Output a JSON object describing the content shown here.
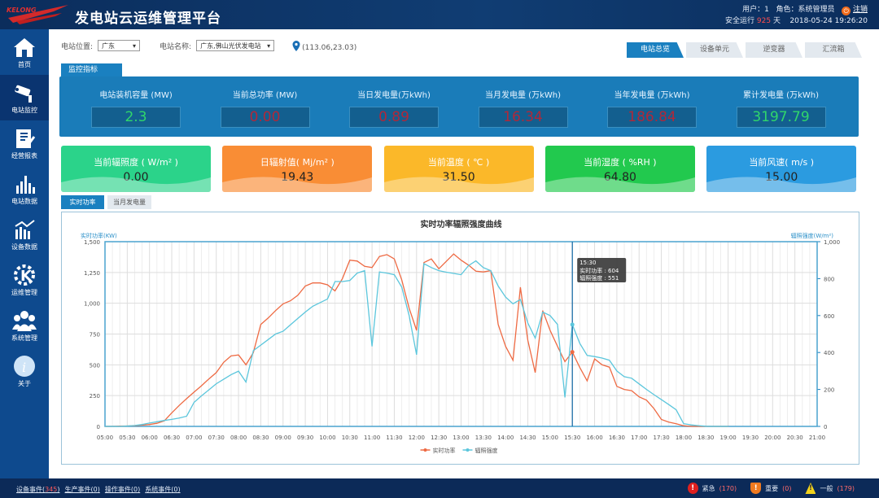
{
  "header": {
    "title": "发电站云运维管理平台",
    "logo_text": "KELONG",
    "user_label": "用户：",
    "user": "1",
    "role_label": "角色：",
    "role": "系统管理员",
    "logout": "注销",
    "safe_run_prefix": "安全运行",
    "safe_run_days": "925",
    "safe_run_suffix": "天",
    "datetime": "2018-05-24 19:26:20"
  },
  "sidebar": {
    "items": [
      {
        "label": "首页",
        "icon": "home-icon"
      },
      {
        "label": "电站监控",
        "icon": "camera-icon",
        "active": true
      },
      {
        "label": "经营报表",
        "icon": "report-icon"
      },
      {
        "label": "电站数据",
        "icon": "bar-chart-icon"
      },
      {
        "label": "设备数据",
        "icon": "trend-chart-icon"
      },
      {
        "label": "运维管理",
        "icon": "gear-k-icon"
      },
      {
        "label": "系统管理",
        "icon": "users-icon"
      },
      {
        "label": "关于",
        "icon": "info-icon"
      }
    ]
  },
  "filters": {
    "location_label": "电站位置:",
    "location": "广东",
    "station_label": "电站名称:",
    "station": "广东,佛山光伏发电站",
    "coords": "(113.06,23.03)"
  },
  "tabs": [
    "电站总览",
    "设备单元",
    "逆变器",
    "汇流箱"
  ],
  "monitor": {
    "tab": "监控指标",
    "metrics": [
      {
        "label": "电站装机容量 (MW)",
        "value": "2.3"
      },
      {
        "label": "当前总功率 (MW)",
        "value": "0.00"
      },
      {
        "label": "当日发电量(万kWh)",
        "value": "0.89"
      },
      {
        "label": "当月发电量 (万kWh)",
        "value": "16.34"
      },
      {
        "label": "当年发电量 (万kWh)",
        "value": "186.84"
      },
      {
        "label": "累计发电量 (万kWh)",
        "value": "3197.79"
      }
    ]
  },
  "cards": [
    {
      "label": "当前辐照度 ( W/m² )",
      "value": "0.00",
      "color": "#2bd38a"
    },
    {
      "label": "日辐射值( Mj/m² )",
      "value": "19.43",
      "color": "#f98d35"
    },
    {
      "label": "当前温度 ( ℃ )",
      "value": "31.50",
      "color": "#fbb829"
    },
    {
      "label": "当前湿度 ( %RH )",
      "value": "64.80",
      "color": "#22c94e"
    },
    {
      "label": "当前风速( m/s )",
      "value": "15.00",
      "color": "#2b9be0"
    }
  ],
  "chart_tabs": [
    "实时功率",
    "当月发电量"
  ],
  "chart_data": {
    "type": "line",
    "title": "实时功率辐照强度曲线",
    "ylabel_left": "实时功率(KW)",
    "ylabel_right": "辐照强度(W/m²)",
    "ylim_left": [
      0,
      1500
    ],
    "yticks_left": [
      "0",
      "250",
      "500",
      "750",
      "1,000",
      "1,250",
      "1,500"
    ],
    "ylim_right": [
      0,
      1000
    ],
    "yticks_right": [
      "0",
      "200",
      "400",
      "600",
      "800",
      "1,000"
    ],
    "xlim": [
      "05:00",
      "21:00"
    ],
    "xticks": [
      "05:00",
      "05:30",
      "06:00",
      "06:30",
      "07:00",
      "07:30",
      "08:00",
      "08:30",
      "09:00",
      "09:30",
      "10:00",
      "10:30",
      "11:00",
      "11:30",
      "12:00",
      "12:30",
      "13:00",
      "13:30",
      "14:00",
      "14:30",
      "15:00",
      "15:30",
      "16:00",
      "16:30",
      "17:00",
      "17:30",
      "18:00",
      "18:30",
      "19:00",
      "19:30",
      "20:00",
      "20:30",
      "21:00"
    ],
    "x_interval_minutes": 10,
    "grid": true,
    "legend": "bottom",
    "series": [
      {
        "name": "实时功率",
        "color": "#ee6a43",
        "axis": "left",
        "values": [
          0,
          0,
          2,
          3,
          5,
          10,
          15,
          25,
          45,
          110,
          170,
          225,
          278,
          330,
          385,
          437,
          520,
          572,
          580,
          500,
          600,
          828,
          880,
          940,
          995,
          1020,
          1065,
          1140,
          1165,
          1165,
          1150,
          1100,
          1200,
          1350,
          1343,
          1300,
          1290,
          1380,
          1395,
          1360,
          1190,
          960,
          780,
          1330,
          1360,
          1280,
          1340,
          1400,
          1350,
          1310,
          1260,
          1254,
          1265,
          828,
          650,
          537,
          1130,
          700,
          437,
          940,
          780,
          650,
          526,
          604,
          480,
          370,
          548,
          500,
          481,
          325,
          300,
          290,
          240,
          213,
          145,
          56,
          35,
          22,
          5,
          0,
          0,
          0,
          0,
          0,
          0
        ]
      },
      {
        "name": "辐照强度",
        "color": "#5bc6dc",
        "axis": "right",
        "values": [
          0,
          0,
          0,
          2,
          5,
          10,
          18,
          25,
          32,
          38,
          45,
          55,
          130,
          165,
          198,
          231,
          255,
          280,
          299,
          240,
          410,
          440,
          470,
          500,
          515,
          550,
          585,
          619,
          650,
          670,
          690,
          784,
          784,
          790,
          830,
          843,
          433,
          836,
          830,
          821,
          754,
          600,
          388,
          881,
          860,
          843,
          835,
          828,
          821,
          870,
          896,
          860,
          843,
          760,
          700,
          664,
          687,
          560,
          478,
          619,
          600,
          552,
          157,
          551,
          450,
          384,
          378,
          370,
          358,
          300,
          269,
          261,
          230,
          200,
          172,
          145,
          118,
          90,
          15,
          8,
          4,
          1,
          0,
          0,
          0
        ]
      }
    ],
    "tooltip": {
      "time": "15:30",
      "line1": "实时功率 : 604",
      "line2": "辐照强度 : 551"
    }
  },
  "footer": {
    "events": [
      {
        "label": "设备事件",
        "count": "345"
      },
      {
        "label": "生产事件",
        "count": "0"
      },
      {
        "label": "操作事件",
        "count": "0"
      },
      {
        "label": "系统事件",
        "count": "0"
      }
    ],
    "alarms": [
      {
        "label": "紧急",
        "count": "(170)",
        "color": "#e0201f"
      },
      {
        "label": "重要",
        "count": "(0)",
        "color": "#f07a20"
      },
      {
        "label": "一般",
        "count": "(179)",
        "color": "#f2d21b"
      }
    ]
  }
}
